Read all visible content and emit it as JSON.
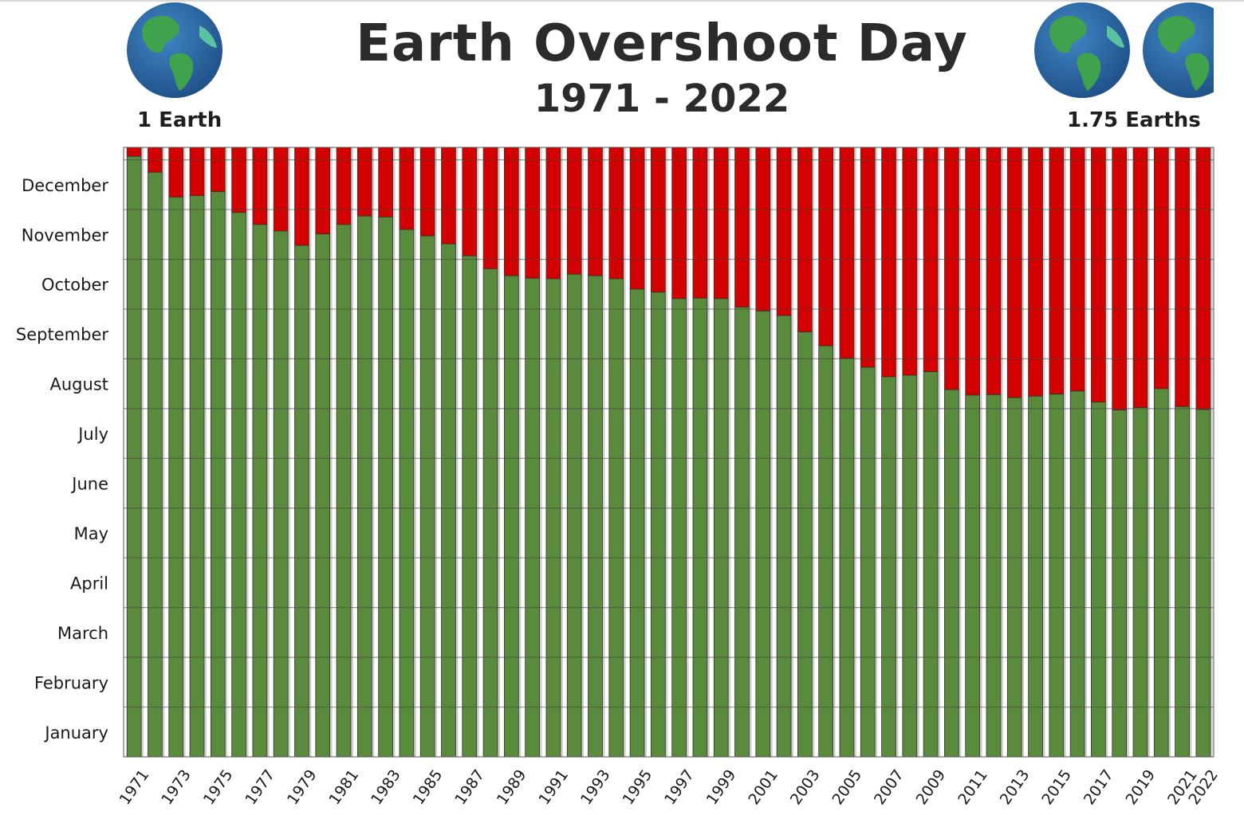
{
  "header": {
    "title": "Earth Overshoot Day",
    "subtitle": "1971 - 2022",
    "left_label": "1 Earth",
    "right_label": "1.75 Earths"
  },
  "icons": {
    "left": "globe-icon",
    "right": [
      "globe-icon",
      "globe-icon"
    ]
  },
  "colors": {
    "before_overshoot": "#5a8a3b",
    "after_overshoot": "#d40000",
    "ocean": "#2a66a8",
    "land": "#3fa34d"
  },
  "chart_data": {
    "type": "bar",
    "stacked": true,
    "title": "Earth Overshoot Day",
    "subtitle": "1971 - 2022",
    "y_axis": {
      "range_months": [
        0,
        12.25
      ],
      "tick_labels": [
        "January",
        "February",
        "March",
        "April",
        "May",
        "June",
        "July",
        "August",
        "September",
        "October",
        "November",
        "December"
      ],
      "tick_positions_months": [
        0.5,
        1.5,
        2.5,
        3.5,
        4.5,
        5.5,
        6.5,
        7.5,
        8.5,
        9.5,
        10.5,
        11.5
      ]
    },
    "x_tick_labels": [
      "1971",
      "1973",
      "1975",
      "1977",
      "1979",
      "1981",
      "1983",
      "1985",
      "1987",
      "1989",
      "1991",
      "1993",
      "1995",
      "1997",
      "1999",
      "2001",
      "2003",
      "2005",
      "2007",
      "2009",
      "2011",
      "2013",
      "2015",
      "2017",
      "2019",
      "2021",
      "2022"
    ],
    "grid": true,
    "categories": [
      "1971",
      "1972",
      "1973",
      "1974",
      "1975",
      "1976",
      "1977",
      "1978",
      "1979",
      "1980",
      "1981",
      "1982",
      "1983",
      "1984",
      "1985",
      "1986",
      "1987",
      "1988",
      "1989",
      "1990",
      "1991",
      "1992",
      "1993",
      "1994",
      "1995",
      "1996",
      "1997",
      "1998",
      "1999",
      "2000",
      "2001",
      "2002",
      "2003",
      "2004",
      "2005",
      "2006",
      "2007",
      "2008",
      "2009",
      "2010",
      "2011",
      "2012",
      "2013",
      "2014",
      "2015",
      "2016",
      "2017",
      "2018",
      "2019",
      "2020",
      "2021",
      "2022"
    ],
    "overshoot_month_value": [
      12.07,
      11.75,
      11.25,
      11.28,
      11.36,
      10.94,
      10.7,
      10.57,
      10.28,
      10.51,
      10.7,
      10.87,
      10.85,
      10.6,
      10.47,
      10.31,
      10.07,
      9.81,
      9.67,
      9.62,
      9.61,
      9.7,
      9.67,
      9.61,
      9.4,
      9.34,
      9.21,
      9.22,
      9.21,
      9.04,
      8.96,
      8.87,
      8.54,
      8.26,
      8.01,
      7.83,
      7.64,
      7.67,
      7.74,
      7.38,
      7.27,
      7.28,
      7.22,
      7.25,
      7.29,
      7.35,
      7.13,
      6.97,
      7.02,
      7.4,
      7.04,
      6.98
    ],
    "series": [
      {
        "values_from": "overshoot_month_value"
      }
    ]
  }
}
